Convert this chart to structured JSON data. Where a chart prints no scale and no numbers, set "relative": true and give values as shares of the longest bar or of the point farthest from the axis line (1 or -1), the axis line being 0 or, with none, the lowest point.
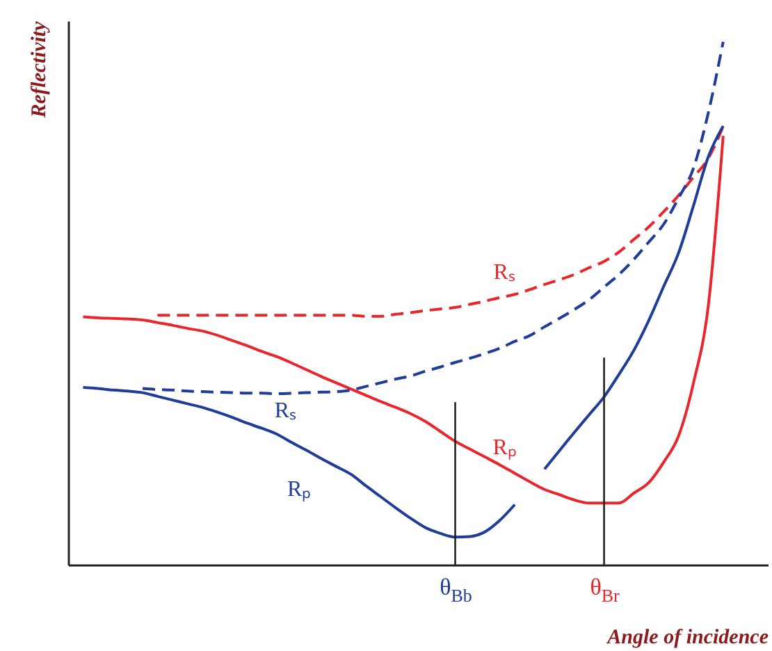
{
  "chart_data": {
    "type": "line",
    "relative": true,
    "xlabel": "Angle of incidence",
    "ylabel": "Reflectivity",
    "categories": [
      null,
      null,
      null,
      null,
      null,
      null,
      null,
      null,
      null,
      null,
      null,
      null,
      null,
      null,
      null,
      null,
      null,
      null,
      null,
      null,
      null,
      null,
      null,
      null,
      null,
      null,
      "θ$_{Bb}$",
      null,
      null,
      null,
      null,
      null,
      null,
      null,
      null,
      null,
      "θ$_{Br}$",
      null,
      null,
      null,
      null,
      null,
      null,
      null,
      null,
      null,
      null,
      null
    ],
    "series": [
      {
        "name": "Rₚ",
        "color": "#e8262b",
        "line_style": "solid",
        "values": [
          null,
          0.474,
          0.472,
          0.471,
          0.47,
          0.468,
          0.463,
          0.458,
          0.452,
          0.447,
          0.439,
          0.429,
          0.419,
          0.408,
          0.398,
          0.386,
          0.373,
          0.36,
          0.348,
          0.336,
          0.324,
          0.312,
          0.301,
          0.289,
          0.274,
          0.255,
          0.236,
          0.221,
          0.206,
          0.191,
          0.175,
          0.159,
          0.144,
          0.134,
          0.124,
          0.118,
          0.118,
          0.118,
          0.137,
          0.157,
          0.196,
          0.246,
          0.347,
          0.495,
          0.82,
          null,
          null,
          null
        ]
      },
      {
        "name": "Rₛ",
        "color": "#e8262b",
        "line_style": "dashed",
        "values": [
          null,
          null,
          null,
          null,
          null,
          null,
          0.477,
          0.477,
          0.477,
          0.477,
          0.477,
          0.477,
          0.477,
          0.477,
          0.477,
          0.477,
          0.477,
          0.477,
          0.477,
          0.477,
          0.475,
          0.475,
          0.479,
          0.482,
          0.486,
          0.489,
          0.492,
          0.498,
          0.504,
          0.511,
          0.517,
          0.526,
          0.536,
          0.545,
          0.555,
          0.568,
          0.58,
          0.598,
          0.622,
          0.646,
          0.675,
          0.706,
          0.741,
          0.777,
          0.838,
          null,
          null,
          null
        ]
      },
      {
        "name": "Rₛ",
        "color": "#1f3c99",
        "line_style": "dashed",
        "values": [
          null,
          null,
          null,
          null,
          null,
          0.337,
          0.335,
          0.334,
          0.332,
          0.331,
          0.33,
          0.329,
          0.328,
          0.328,
          0.327,
          0.328,
          0.329,
          0.33,
          0.331,
          0.334,
          0.341,
          0.348,
          0.355,
          0.361,
          0.37,
          0.378,
          0.387,
          0.395,
          0.404,
          0.414,
          0.427,
          0.438,
          0.455,
          0.471,
          0.488,
          0.507,
          0.531,
          0.555,
          0.584,
          0.617,
          0.651,
          0.701,
          0.758,
          0.864,
          1,
          null,
          null,
          null
        ]
      },
      {
        "name": "Rₚ",
        "color": "#1f3c99",
        "line_style": "solid",
        "values": [
          null,
          0.339,
          0.337,
          0.334,
          0.332,
          0.329,
          0.322,
          0.315,
          0.308,
          0.301,
          0.292,
          0.282,
          0.271,
          0.261,
          0.25,
          0.234,
          0.219,
          0.203,
          0.188,
          0.173,
          0.151,
          0.13,
          0.109,
          0.089,
          0.071,
          0.06,
          0.053,
          0.054,
          0.063,
          0.085,
          0.115,
          null,
          0.183,
          0.218,
          0.253,
          0.287,
          0.321,
          0.364,
          0.41,
          0.467,
          0.532,
          0.596,
          0.686,
          0.78,
          0.839,
          null,
          null,
          null
        ]
      }
    ],
    "ref_lines": [
      {
        "axis": "x",
        "value": "θ$_{Bb}$",
        "color": "#222222"
      },
      {
        "axis": "x",
        "value": "θ$_{Br}$",
        "color": "#222222"
      }
    ]
  }
}
